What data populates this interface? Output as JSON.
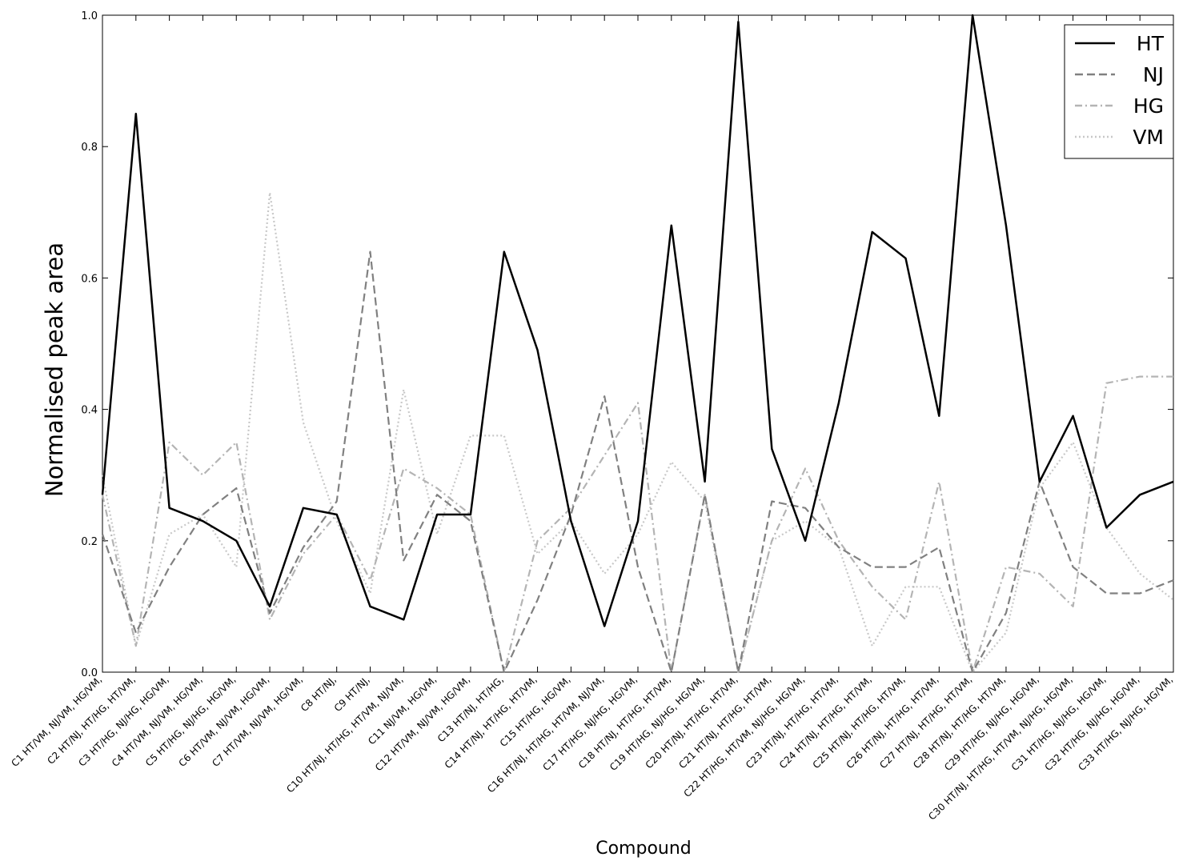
{
  "chart_data": {
    "type": "line",
    "title": "",
    "xlabel": "Compound",
    "ylabel": "Normalised peak area",
    "ylim": [
      0,
      1
    ],
    "yticks": [
      "0.0",
      "0.2",
      "0.4",
      "0.6",
      "0.8",
      "1.0"
    ],
    "grid": false,
    "legend_position": "top-right",
    "categories": [
      "C1 HT/VM, NJ/VM, HG/VM,",
      "C2 HT/NJ, HT/HG, HT/VM,",
      "C3 HT/HG, NJ/HG, HG/VM,",
      "C4 HT/VM, NJ/VM, HG/VM,",
      "C5 HT/HG, NJ/HG, HG/VM,",
      "C6 HT/VM, NJ/VM, HG/VM,",
      "C7 HT/VM, NJ/VM, HG/VM,",
      "C8 HT/NJ,",
      "C9 HT/NJ,",
      "C10 HT/NJ, HT/HG, HT/VM, NJ/VM,",
      "C11 NJ/VM, HG/VM,",
      "C12 HT/VM, NJ/VM, HG/VM,",
      "C13 HT/NJ, HT/HG,",
      "C14 HT/NJ, HT/HG, HT/VM,",
      "C15 HT/HG, HG/VM,",
      "C16 HT/NJ, HT/HG, HT/VM, NJ/VM,",
      "C17 HT/HG, NJ/HG, HG/VM,",
      "C18 HT/NJ, HT/HG, HT/VM,",
      "C19 HT/HG, NJ/HG, HG/VM,",
      "C20 HT/NJ, HT/HG, HT/VM,",
      "C21 HT/NJ, HT/HG, HT/VM,",
      "C22 HT/HG, HT/VM, NJ/HG, HG/VM,",
      "C23 HT/NJ, HT/HG, HT/VM,",
      "C24 HT/NJ, HT/HG, HT/VM,",
      "C25 HT/NJ, HT/HG, HT/VM,",
      "C26 HT/NJ, HT/HG, HT/VM,",
      "C27 HT/NJ, HT/HG, HT/VM,",
      "C28 HT/NJ, HT/HG, HT/VM,",
      "C29 HT/HG, NJ/HG, HG/VM,",
      "C30 HT/NJ, HT/HG, HT/VM, NJ/HG, HG/VM,",
      "C31 HT/HG, NJ/HG, HG/VM,",
      "C32 HT/HG, NJ/HG, HG/VM,",
      "C33 HT/HG, NJ/HG, HG/VM,"
    ],
    "series": [
      {
        "name": "HT",
        "style": "solid",
        "color": "#000000",
        "values": [
          0.27,
          0.85,
          0.25,
          0.23,
          0.2,
          0.1,
          0.25,
          0.24,
          0.1,
          0.08,
          0.24,
          0.24,
          0.64,
          0.49,
          0.23,
          0.07,
          0.23,
          0.68,
          0.29,
          0.99,
          0.34,
          0.2,
          0.41,
          0.67,
          0.63,
          0.39,
          1.0,
          0.68,
          0.29,
          0.39,
          0.22,
          0.27,
          0.29
        ]
      },
      {
        "name": "NJ",
        "style": "dashed",
        "color": "#808080",
        "values": [
          0.21,
          0.06,
          0.16,
          0.24,
          0.28,
          0.09,
          0.19,
          0.26,
          0.64,
          0.17,
          0.27,
          0.23,
          0.0,
          0.11,
          0.24,
          0.42,
          0.16,
          0.0,
          0.27,
          0.0,
          0.26,
          0.25,
          0.19,
          0.16,
          0.16,
          0.19,
          0.0,
          0.09,
          0.29,
          0.16,
          0.12,
          0.12,
          0.14
        ]
      },
      {
        "name": "HG",
        "style": "dashdot",
        "color": "#b4b4b4",
        "values": [
          0.27,
          0.04,
          0.35,
          0.3,
          0.35,
          0.08,
          0.18,
          0.24,
          0.14,
          0.31,
          0.28,
          0.24,
          0.0,
          0.2,
          0.25,
          0.33,
          0.41,
          0.0,
          0.27,
          0.0,
          0.2,
          0.31,
          0.2,
          0.13,
          0.08,
          0.29,
          0.0,
          0.16,
          0.15,
          0.1,
          0.44,
          0.45,
          0.45
        ]
      },
      {
        "name": "VM",
        "style": "dotted",
        "color": "#c8c8c8",
        "values": [
          0.3,
          0.04,
          0.21,
          0.24,
          0.16,
          0.73,
          0.38,
          0.23,
          0.12,
          0.43,
          0.21,
          0.36,
          0.36,
          0.18,
          0.23,
          0.15,
          0.21,
          0.32,
          0.26,
          0.0,
          0.2,
          0.23,
          0.19,
          0.04,
          0.13,
          0.13,
          0.0,
          0.06,
          0.28,
          0.35,
          0.22,
          0.15,
          0.11
        ]
      }
    ]
  }
}
